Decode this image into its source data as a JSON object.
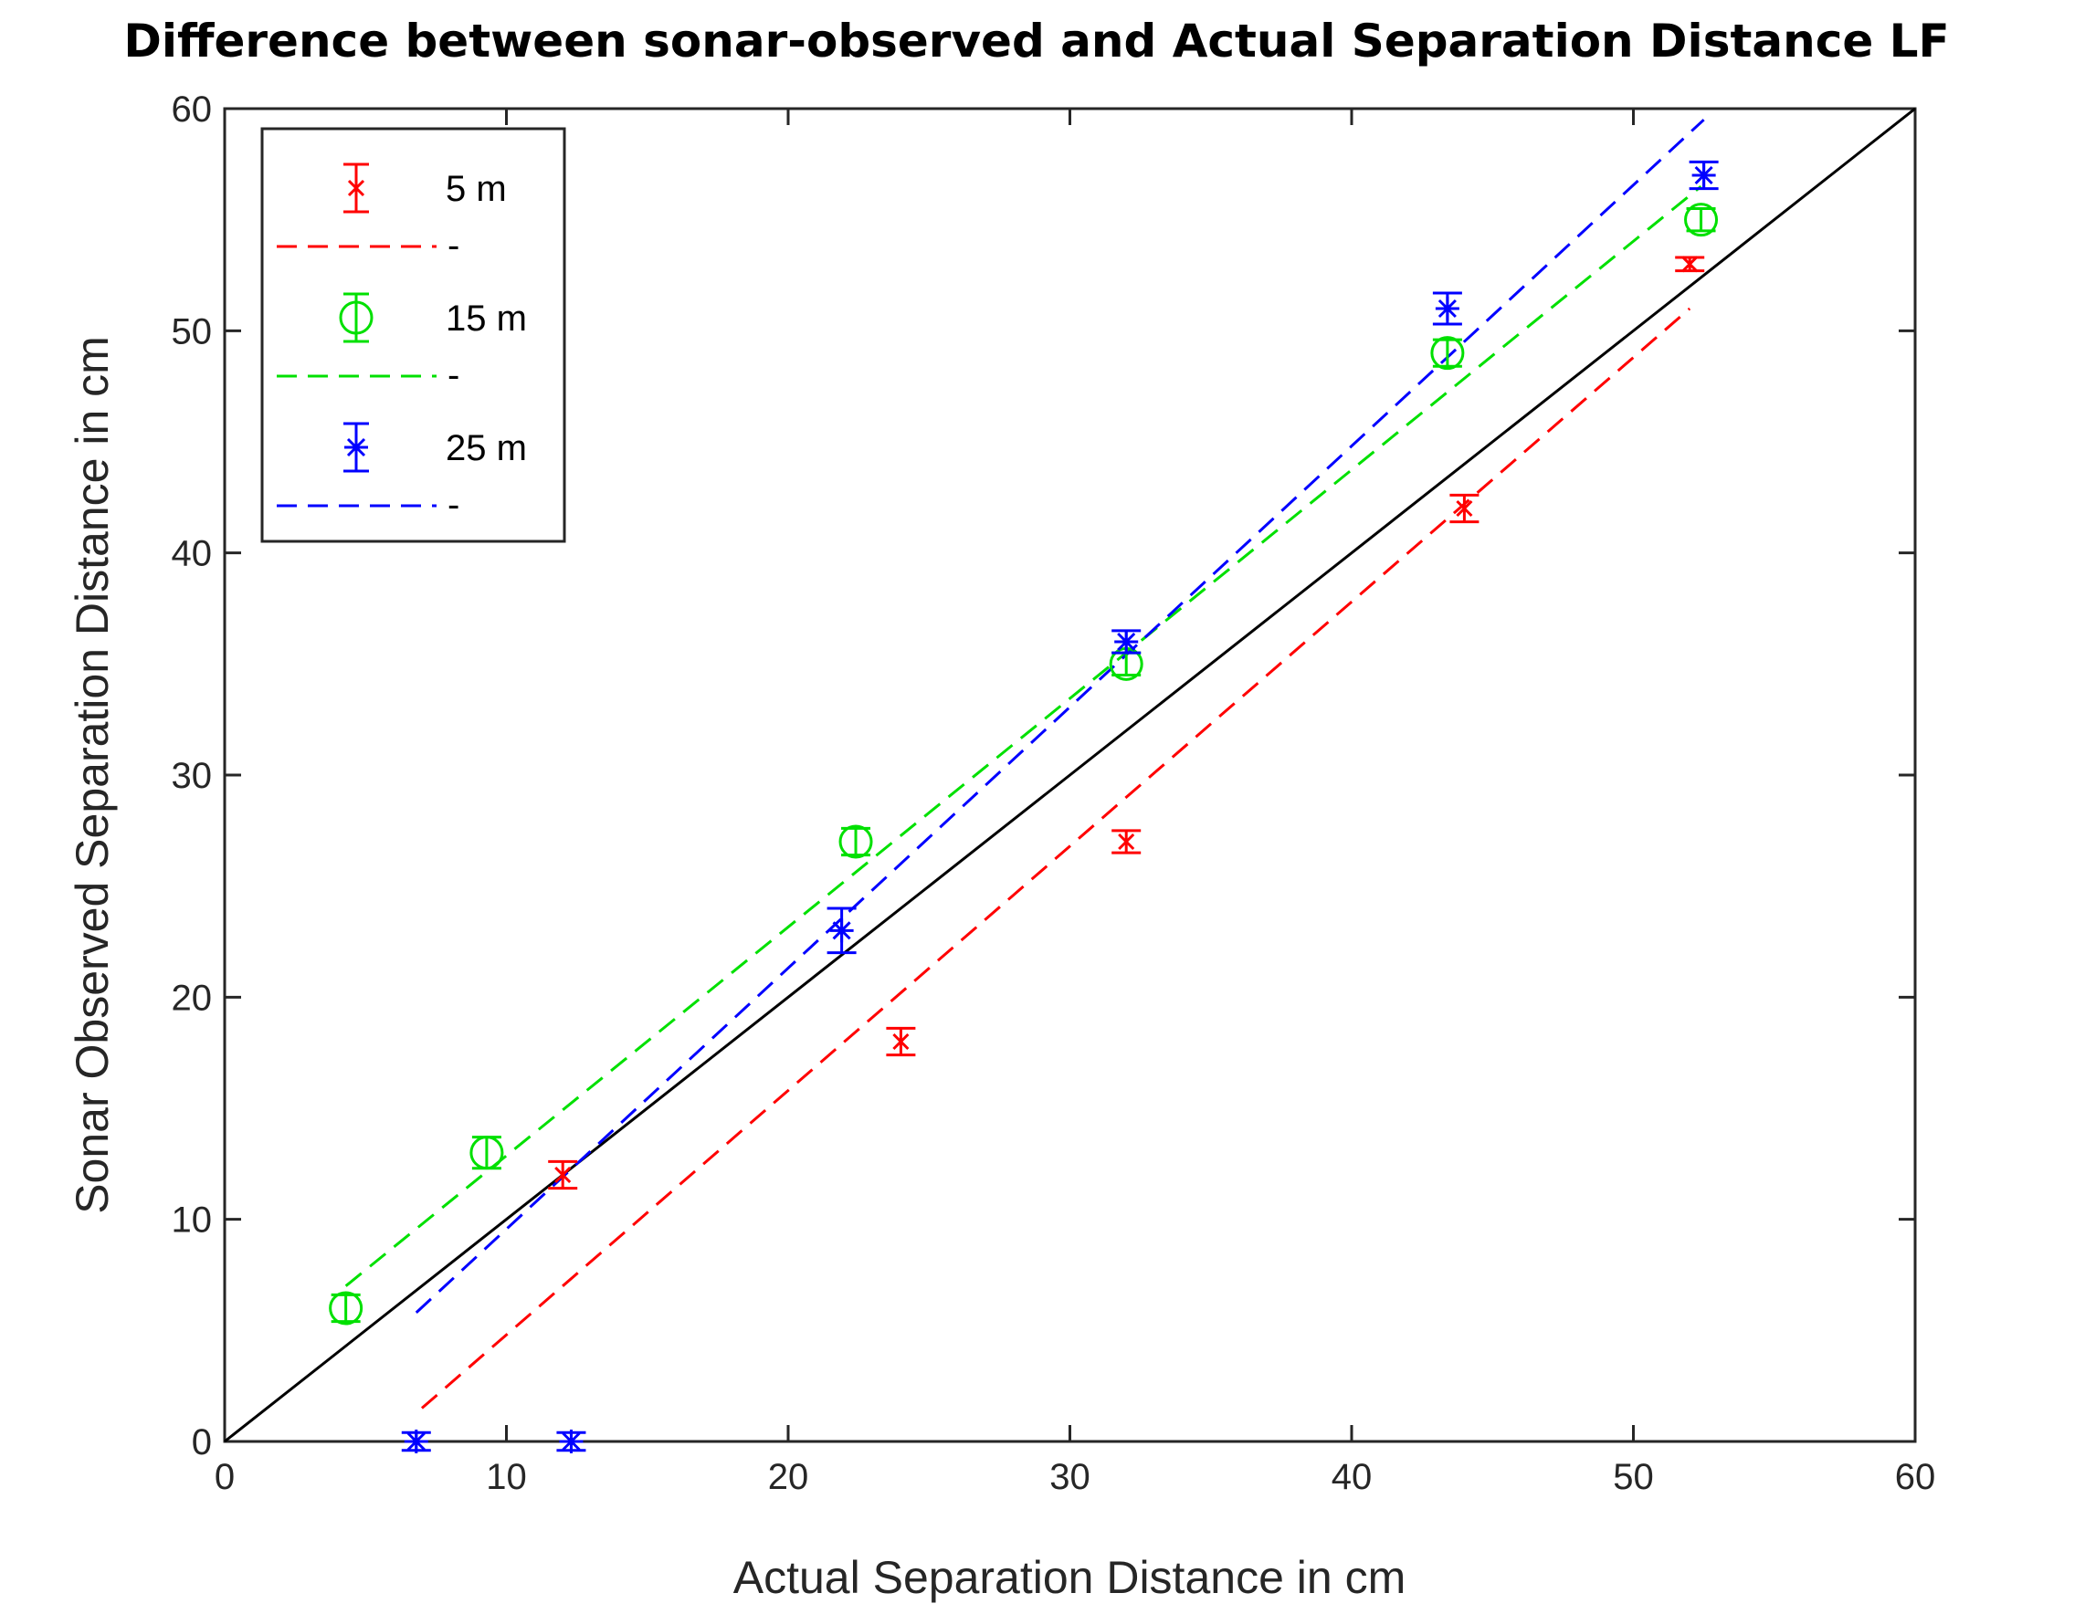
{
  "chart_data": {
    "type": "scatter",
    "title": "Difference between sonar-observed and Actual Separation Distance LF",
    "xlabel": "Actual Separation Distance in cm",
    "ylabel": "Sonar Observed Separation Distance in cm",
    "xlim": [
      0,
      60
    ],
    "ylim": [
      0,
      60
    ],
    "xticks": [
      0,
      10,
      20,
      30,
      40,
      50,
      60
    ],
    "yticks": [
      0,
      10,
      20,
      30,
      40,
      50,
      60
    ],
    "grid": false,
    "legend_position": "top-left",
    "reference_line": {
      "name": "y = x",
      "color": "#000000",
      "x": [
        0,
        60
      ],
      "y": [
        0,
        60
      ]
    },
    "series": [
      {
        "name": "5 m",
        "fit_label": "-",
        "color": "#ff0000",
        "marker": "x",
        "x": [
          12,
          24,
          32,
          44,
          52
        ],
        "y": [
          12,
          18,
          27,
          42,
          53
        ],
        "err": [
          0.6,
          0.6,
          0.5,
          0.6,
          0.3
        ],
        "fit": {
          "x": [
            7,
            52
          ],
          "y": [
            1.5,
            51
          ]
        }
      },
      {
        "name": "15 m",
        "fit_label": "-",
        "color": "#00e000",
        "marker": "o",
        "x": [
          4.3,
          9.3,
          22.4,
          32,
          43.4,
          52.4
        ],
        "y": [
          6,
          13,
          27,
          35,
          49,
          55
        ],
        "err": [
          0.6,
          0.7,
          0.6,
          0.5,
          0.6,
          0.5
        ],
        "fit": {
          "x": [
            4.3,
            52.4
          ],
          "y": [
            7,
            56.5
          ]
        }
      },
      {
        "name": "25 m",
        "fit_label": "-",
        "color": "#0000ff",
        "marker": "*",
        "x": [
          6.8,
          12.3,
          21.9,
          32,
          43.4,
          52.5
        ],
        "y": [
          0,
          0,
          23,
          36,
          51,
          57
        ],
        "err": [
          0.4,
          0.4,
          1.0,
          0.5,
          0.7,
          0.6
        ],
        "fit": {
          "x": [
            6.8,
            52.5
          ],
          "y": [
            5.8,
            59.5
          ]
        }
      }
    ]
  }
}
